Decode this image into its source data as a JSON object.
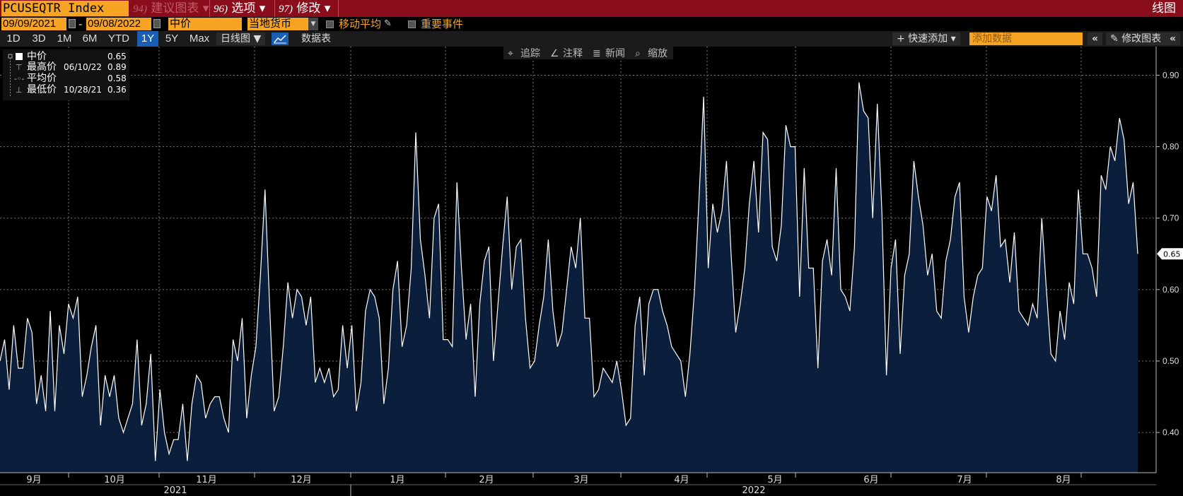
{
  "header": {
    "ticker": "PCUSEQTR Index",
    "menu": [
      {
        "num": "94)",
        "label": "建议图表",
        "dim": true
      },
      {
        "num": "96)",
        "label": "选项 ▾",
        "dim": false
      },
      {
        "num": "97)",
        "label": "修改 ▾",
        "dim": false
      }
    ],
    "dim_chevron": "▾",
    "chart_type_title": "线图"
  },
  "controls": {
    "start_date": "09/09/2021",
    "end_date": "09/08/2022",
    "date_separator": "-",
    "field": "中价",
    "currency": "当地货币",
    "moving_avg": "移动平均",
    "key_events": "重要事件"
  },
  "periods": [
    "1D",
    "3D",
    "1M",
    "6M",
    "YTD",
    "1Y",
    "5Y",
    "Max"
  ],
  "active_period": "1Y",
  "toolbar": {
    "frequency": "日线图 ▼",
    "table": "数据表",
    "quick_add": "+ 快速添加 ▾",
    "add_data_placeholder": "添加数据",
    "collapse": "«",
    "edit_chart": "修改图表",
    "expand": "«"
  },
  "chart_tools": [
    "追踪",
    "注释",
    "新闻",
    "缩放"
  ],
  "legend": {
    "rows": [
      {
        "label": "中价",
        "date": "",
        "value": "0.65"
      },
      {
        "label": "最高价",
        "date": "06/10/22",
        "value": "0.89"
      },
      {
        "label": "平均价",
        "date": "",
        "value": "0.58"
      },
      {
        "label": "最低价",
        "date": "10/28/21",
        "value": "0.36"
      }
    ]
  },
  "colors": {
    "line": "#ffffff",
    "area": "#0b1f3d",
    "grid": "#7a7a7a",
    "accent": "#f7a424",
    "header": "#8a0d1c"
  },
  "chart_data": {
    "type": "area",
    "title": "",
    "xlabel": "",
    "ylabel": "",
    "ylim": [
      0.32,
      0.94
    ],
    "y_ticks": [
      "0.40",
      "0.50",
      "0.60",
      "0.70",
      "0.80",
      "0.90"
    ],
    "x_month_labels": [
      "9月",
      "10月",
      "11月",
      "12月",
      "1月",
      "2月",
      "3月",
      "4月",
      "5月",
      "6月",
      "7月",
      "8月"
    ],
    "x_year_labels": [
      "2021",
      "2022"
    ],
    "last_value_label": "0.65",
    "grid": true,
    "series": [
      {
        "values": [
          0.5,
          0.53,
          0.46,
          0.55,
          0.49,
          0.49,
          0.56,
          0.54,
          0.44,
          0.48,
          0.43,
          0.57,
          0.43,
          0.55,
          0.51,
          0.58,
          0.56,
          0.59,
          0.45,
          0.48,
          0.52,
          0.55,
          0.41,
          0.48,
          0.45,
          0.48,
          0.42,
          0.4,
          0.42,
          0.44,
          0.53,
          0.41,
          0.44,
          0.51,
          0.36,
          0.46,
          0.4,
          0.37,
          0.39,
          0.39,
          0.44,
          0.36,
          0.44,
          0.48,
          0.47,
          0.42,
          0.44,
          0.45,
          0.45,
          0.42,
          0.4,
          0.53,
          0.5,
          0.56,
          0.42,
          0.48,
          0.52,
          0.62,
          0.74,
          0.58,
          0.43,
          0.45,
          0.52,
          0.61,
          0.56,
          0.6,
          0.59,
          0.55,
          0.59,
          0.47,
          0.49,
          0.47,
          0.49,
          0.45,
          0.46,
          0.55,
          0.49,
          0.55,
          0.43,
          0.47,
          0.57,
          0.6,
          0.59,
          0.56,
          0.44,
          0.49,
          0.6,
          0.64,
          0.52,
          0.55,
          0.63,
          0.82,
          0.67,
          0.62,
          0.56,
          0.7,
          0.72,
          0.53,
          0.53,
          0.52,
          0.75,
          0.63,
          0.53,
          0.58,
          0.45,
          0.58,
          0.64,
          0.66,
          0.5,
          0.58,
          0.66,
          0.73,
          0.6,
          0.66,
          0.67,
          0.56,
          0.49,
          0.5,
          0.55,
          0.59,
          0.67,
          0.57,
          0.52,
          0.54,
          0.6,
          0.66,
          0.63,
          0.7,
          0.56,
          0.56,
          0.45,
          0.46,
          0.49,
          0.48,
          0.47,
          0.5,
          0.46,
          0.41,
          0.42,
          0.55,
          0.59,
          0.48,
          0.58,
          0.6,
          0.6,
          0.57,
          0.55,
          0.52,
          0.51,
          0.5,
          0.45,
          0.51,
          0.6,
          0.73,
          0.87,
          0.63,
          0.72,
          0.68,
          0.71,
          0.78,
          0.65,
          0.54,
          0.58,
          0.63,
          0.72,
          0.78,
          0.68,
          0.82,
          0.81,
          0.66,
          0.64,
          0.69,
          0.83,
          0.8,
          0.8,
          0.59,
          0.77,
          0.63,
          0.63,
          0.49,
          0.64,
          0.67,
          0.62,
          0.77,
          0.6,
          0.59,
          0.57,
          0.66,
          0.89,
          0.85,
          0.84,
          0.7,
          0.86,
          0.71,
          0.48,
          0.63,
          0.67,
          0.51,
          0.62,
          0.65,
          0.78,
          0.73,
          0.69,
          0.62,
          0.65,
          0.57,
          0.56,
          0.64,
          0.67,
          0.73,
          0.75,
          0.59,
          0.54,
          0.59,
          0.62,
          0.63,
          0.73,
          0.71,
          0.76,
          0.66,
          0.67,
          0.61,
          0.68,
          0.57,
          0.56,
          0.55,
          0.58,
          0.56,
          0.7,
          0.6,
          0.51,
          0.5,
          0.57,
          0.53,
          0.61,
          0.58,
          0.74,
          0.65,
          0.65,
          0.63,
          0.59,
          0.76,
          0.74,
          0.8,
          0.78,
          0.84,
          0.81,
          0.72,
          0.75,
          0.65
        ]
      }
    ]
  }
}
